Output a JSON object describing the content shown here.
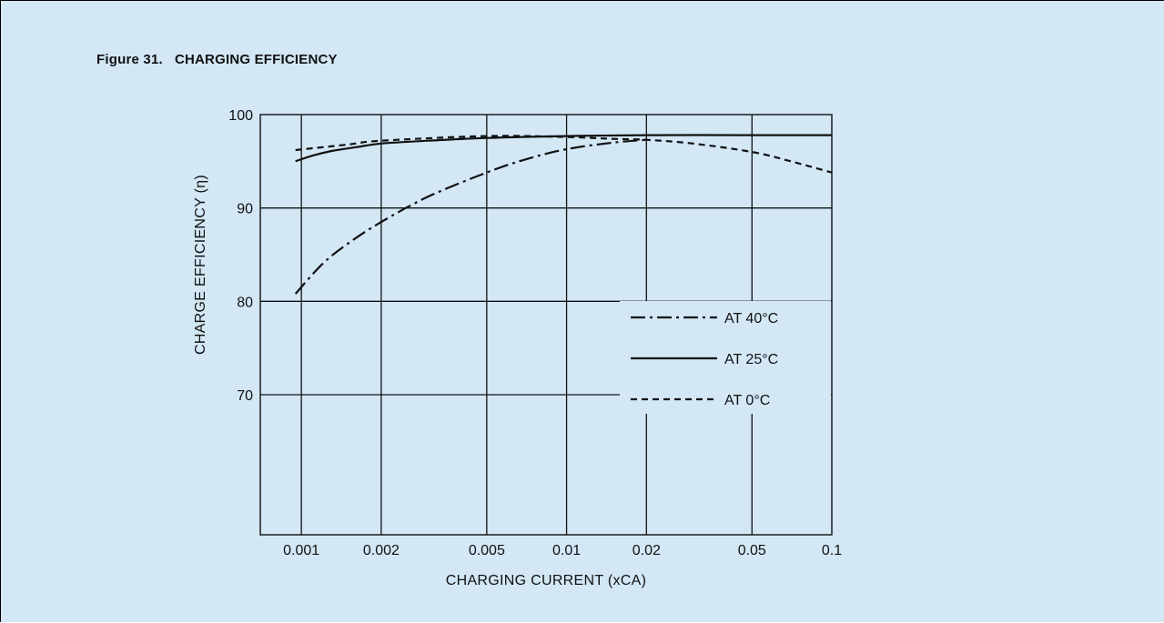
{
  "figure_title": "Figure 31.   CHARGING EFFICIENCY",
  "chart_data": {
    "type": "line",
    "x_scale": "log",
    "xlabel": "CHARGING CURRENT (xCA)",
    "ylabel": "CHARGE EFFICIENCY (η)",
    "xlim": [
      0.0007,
      0.1
    ],
    "ylim": [
      55,
      100
    ],
    "x_ticks": [
      {
        "value": 0.001,
        "label": "0.001"
      },
      {
        "value": 0.002,
        "label": "0.002"
      },
      {
        "value": 0.005,
        "label": "0.005"
      },
      {
        "value": 0.01,
        "label": "0.01"
      },
      {
        "value": 0.02,
        "label": "0.02"
      },
      {
        "value": 0.05,
        "label": "0.05"
      },
      {
        "value": 0.1,
        "label": "0.1"
      }
    ],
    "y_ticks": [
      {
        "value": 100,
        "label": "100"
      },
      {
        "value": 90,
        "label": "90"
      },
      {
        "value": 80,
        "label": "80"
      },
      {
        "value": 70,
        "label": "70"
      }
    ],
    "grid": true,
    "legend_position": "right-center",
    "series": [
      {
        "name": "AT 40°C",
        "style": "dashdot",
        "x": [
          0.00095,
          0.0012,
          0.0015,
          0.002,
          0.003,
          0.005,
          0.007,
          0.01,
          0.015,
          0.02
        ],
        "y": [
          80.8,
          84.0,
          86.2,
          88.5,
          91.2,
          93.8,
          95.2,
          96.3,
          97.0,
          97.3
        ]
      },
      {
        "name": "AT 25°C",
        "style": "solid",
        "x": [
          0.00095,
          0.0011,
          0.0013,
          0.0016,
          0.002,
          0.003,
          0.005,
          0.01,
          0.02,
          0.05,
          0.1
        ],
        "y": [
          95.0,
          95.6,
          96.1,
          96.5,
          96.9,
          97.2,
          97.5,
          97.7,
          97.8,
          97.8,
          97.8
        ]
      },
      {
        "name": "AT 0°C",
        "style": "dashed",
        "x": [
          0.00095,
          0.0015,
          0.002,
          0.005,
          0.01,
          0.015,
          0.02,
          0.03,
          0.05,
          0.07,
          0.1
        ],
        "y": [
          96.2,
          96.8,
          97.2,
          97.7,
          97.6,
          97.4,
          97.3,
          96.9,
          96.0,
          95.0,
          93.8
        ]
      }
    ]
  }
}
